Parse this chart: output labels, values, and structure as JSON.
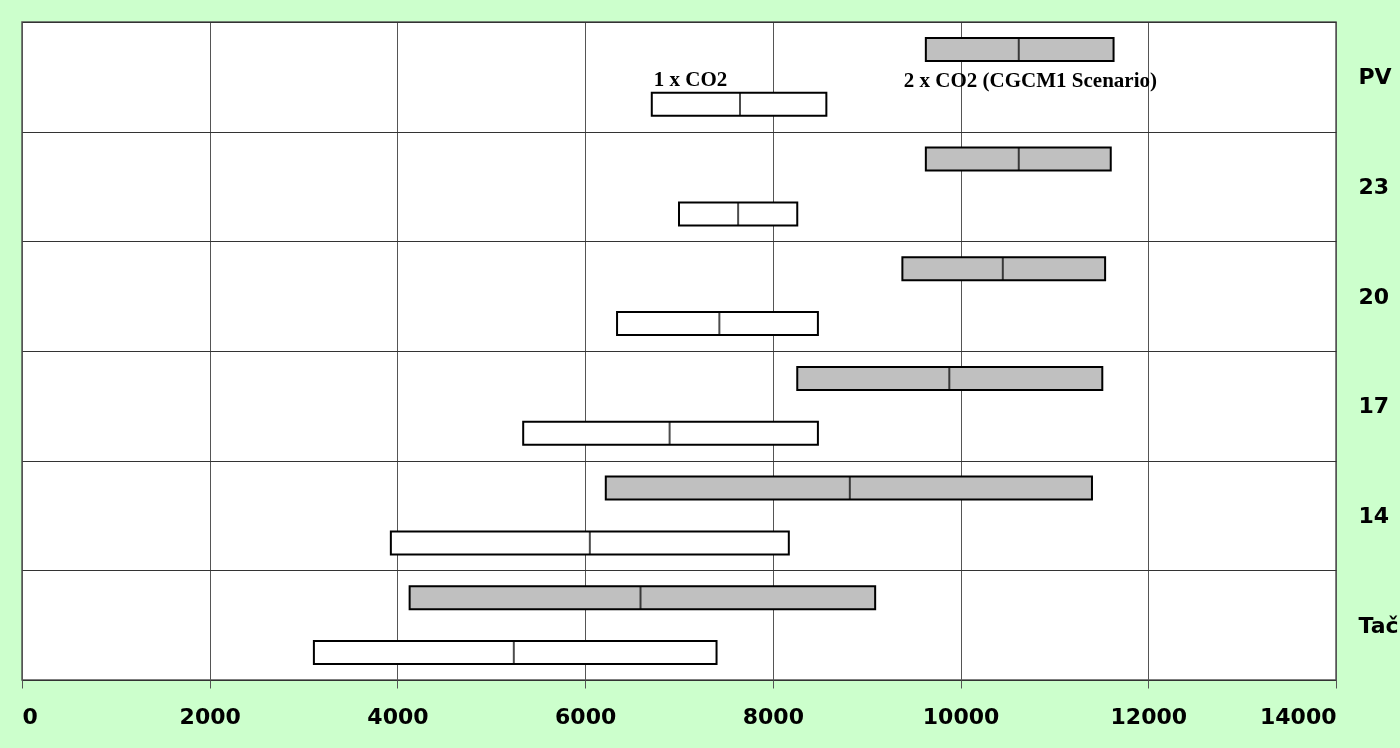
{
  "chart_data": {
    "type": "box",
    "orientation": "horizontal",
    "categories": [
      "PV",
      "23",
      "20",
      "17",
      "14",
      "Tač"
    ],
    "series": [
      {
        "name": "2 x CO2 (CGCM1 Scenario)",
        "color": "#c0c0c0",
        "boxes": [
          {
            "low": 9630,
            "q1": 9630,
            "median": 10620,
            "q3": 11630,
            "high": 11630
          },
          {
            "low": 9630,
            "q1": 9630,
            "median": 10620,
            "q3": 11600,
            "high": 11600
          },
          {
            "low": 9380,
            "q1": 9380,
            "median": 10450,
            "q3": 11540,
            "high": 11540
          },
          {
            "low": 8260,
            "q1": 8260,
            "median": 9880,
            "q3": 11510,
            "high": 11510
          },
          {
            "low": 6220,
            "q1": 6220,
            "median": 8820,
            "q3": 11400,
            "high": 11400
          },
          {
            "low": 4130,
            "q1": 4130,
            "median": 6590,
            "q3": 9090,
            "high": 9090
          }
        ]
      },
      {
        "name": "1 x CO2",
        "color": "#ffffff",
        "boxes": [
          {
            "low": 6710,
            "q1": 6710,
            "median": 7650,
            "q3": 8570,
            "high": 8570
          },
          {
            "low": 7000,
            "q1": 7000,
            "median": 7630,
            "q3": 8260,
            "high": 8260
          },
          {
            "low": 6340,
            "q1": 6340,
            "median": 7430,
            "q3": 8480,
            "high": 8480
          },
          {
            "low": 5340,
            "q1": 5340,
            "median": 6900,
            "q3": 8480,
            "high": 8480
          },
          {
            "low": 3930,
            "q1": 3930,
            "median": 6050,
            "q3": 8170,
            "high": 8170
          },
          {
            "low": 3110,
            "q1": 3110,
            "median": 5240,
            "q3": 7400,
            "high": 7400
          }
        ]
      }
    ],
    "xlim": [
      0,
      14000
    ],
    "xticks": [
      0,
      2000,
      4000,
      6000,
      8000,
      10000,
      12000,
      14000
    ],
    "grid": true
  }
}
